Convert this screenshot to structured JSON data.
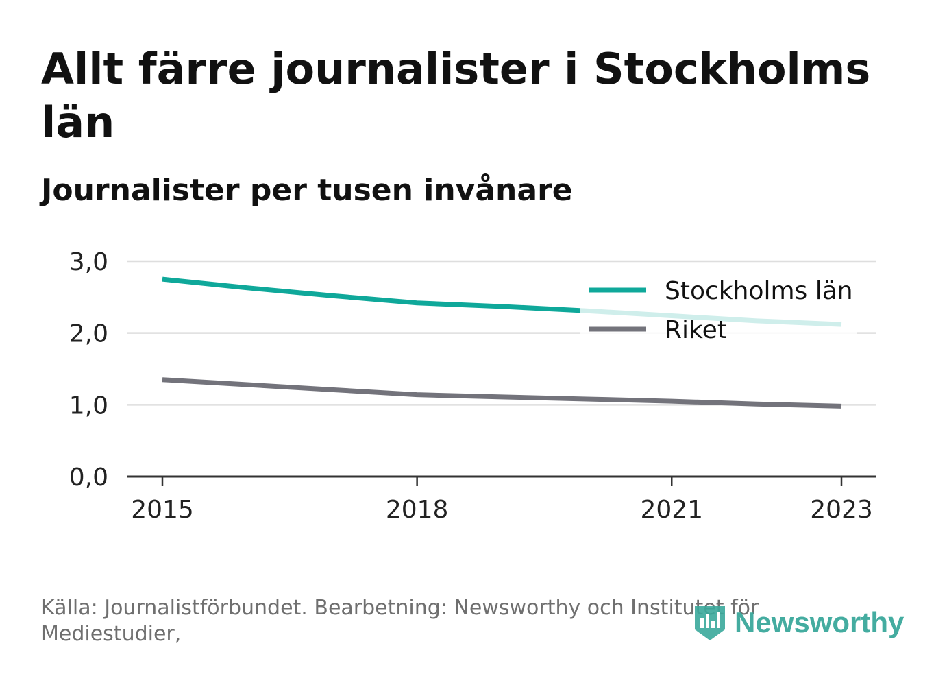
{
  "header": {
    "title": "Allt färre journalister i Stockholms län",
    "subtitle": "Journalister per tusen invånare"
  },
  "footer": {
    "source": "Källa: Journalistförbundet. Bearbetning: Newsworthy och Institutet för Mediestudier,"
  },
  "logo": {
    "text": "Newsworthy",
    "icon": "bar-chart-shield-icon",
    "color": "#3aa89b"
  },
  "chart_data": {
    "type": "line",
    "title": "Allt färre journalister i Stockholms län",
    "subtitle": "Journalister per tusen invånare",
    "xlabel": "",
    "ylabel": "",
    "x": [
      2015,
      2016,
      2017,
      2018,
      2019,
      2020,
      2021,
      2022,
      2023
    ],
    "x_ticks": [
      "2015",
      "2018",
      "2021",
      "2023"
    ],
    "y_ticks": [
      "0,0",
      "1,0",
      "2,0",
      "3,0"
    ],
    "ylim": [
      0,
      3
    ],
    "grid": true,
    "legend_position": "top-right",
    "series": [
      {
        "name": "Stockholms län",
        "color": "#0fa89a",
        "values": [
          2.75,
          2.63,
          2.52,
          2.42,
          2.37,
          2.31,
          2.24,
          2.17,
          2.12
        ]
      },
      {
        "name": "Riket",
        "color": "#73737b",
        "values": [
          1.35,
          1.28,
          1.21,
          1.14,
          1.11,
          1.08,
          1.05,
          1.01,
          0.98
        ]
      }
    ]
  }
}
